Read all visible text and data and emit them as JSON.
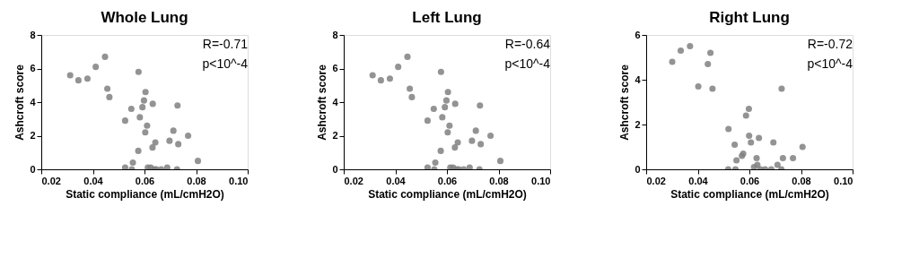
{
  "chart_data": [
    {
      "type": "scatter",
      "title": "Whole Lung",
      "xlabel": "Static compliance (mL/cmH2O)",
      "ylabel": "Ashcroft score",
      "annotations": [
        "R=-0.71",
        "p<10^-4"
      ],
      "marker": "circle",
      "grid": false,
      "xlim": [
        0.02,
        0.1
      ],
      "xticks": [
        {
          "value": 0.02,
          "label": "0.02"
        },
        {
          "value": 0.04,
          "label": "0.04"
        },
        {
          "value": 0.06,
          "label": "0.06"
        },
        {
          "value": 0.08,
          "label": "0.08"
        },
        {
          "value": 0.1,
          "label": "0.10"
        }
      ],
      "ylim": [
        0,
        8
      ],
      "yticks": [
        0,
        2,
        4,
        6,
        8
      ],
      "series": [
        {
          "color": "#808080",
          "x": [
            0.0312,
            0.0344,
            0.0379,
            0.0411,
            0.0447,
            0.0456,
            0.0464,
            0.0577,
            0.0525,
            0.0549,
            0.0582,
            0.0592,
            0.0598,
            0.0604,
            0.0603,
            0.061,
            0.0632,
            0.0631,
            0.0642,
            0.0576,
            0.0555,
            0.0525,
            0.0551,
            0.0613,
            0.0624,
            0.0638,
            0.0646,
            0.0665,
            0.0688,
            0.0697,
            0.0712,
            0.0728,
            0.0726,
            0.0731,
            0.0769,
            0.0807
          ],
          "values": [
            5.6,
            5.3,
            5.4,
            6.1,
            6.7,
            4.8,
            4.3,
            5.8,
            2.9,
            3.6,
            3.1,
            3.7,
            4.1,
            4.6,
            2.2,
            2.6,
            3.9,
            1.3,
            1.6,
            1.1,
            0.4,
            0.1,
            0,
            0.1,
            0.1,
            0,
            0,
            0,
            0.1,
            1.7,
            2.3,
            3.8,
            0,
            1.5,
            2.0,
            0.5
          ]
        }
      ]
    },
    {
      "type": "scatter",
      "title": "Left Lung",
      "xlabel": "Static compliance (mL/cmH2O)",
      "ylabel": "Ashcroft score",
      "annotations": [
        "R=-0.64",
        "p<10^-4"
      ],
      "marker": "circle",
      "grid": false,
      "xlim": [
        0.02,
        0.1
      ],
      "xticks": [
        {
          "value": 0.02,
          "label": "0.02"
        },
        {
          "value": 0.04,
          "label": "0.04"
        },
        {
          "value": 0.06,
          "label": "0.06"
        },
        {
          "value": 0.08,
          "label": "0.08"
        },
        {
          "value": 0.1,
          "label": "0.10"
        }
      ],
      "ylim": [
        0,
        8
      ],
      "yticks": [
        0,
        2,
        4,
        6,
        8
      ],
      "series": [
        {
          "color": "#808080",
          "x": [
            0.0312,
            0.0344,
            0.0379,
            0.0411,
            0.0447,
            0.0456,
            0.0464,
            0.0577,
            0.0525,
            0.0549,
            0.0582,
            0.0592,
            0.0598,
            0.0604,
            0.0603,
            0.061,
            0.0632,
            0.0631,
            0.0642,
            0.0576,
            0.0555,
            0.0525,
            0.0551,
            0.0613,
            0.0624,
            0.0638,
            0.0646,
            0.0665,
            0.0688,
            0.0697,
            0.0712,
            0.0728,
            0.0726,
            0.0731,
            0.0769,
            0.0807
          ],
          "values": [
            5.6,
            5.3,
            5.4,
            6.1,
            6.7,
            4.8,
            4.3,
            5.8,
            2.9,
            3.6,
            3.1,
            3.7,
            4.1,
            4.6,
            2.2,
            2.6,
            3.9,
            1.3,
            1.6,
            1.1,
            0.4,
            0.1,
            0,
            0.1,
            0.1,
            0,
            0,
            0,
            0.1,
            1.7,
            2.3,
            3.8,
            0,
            1.5,
            2.0,
            0.5
          ]
        }
      ]
    },
    {
      "type": "scatter",
      "title": "Right Lung",
      "xlabel": "Static compliance (mL/cmH2O)",
      "ylabel": "Ashcroft score",
      "annotations": [
        "R=-0.72",
        "p<10^-4"
      ],
      "marker": "circle",
      "grid": false,
      "xlim": [
        0.02,
        0.1
      ],
      "xticks": [
        {
          "value": 0.02,
          "label": "0.02"
        },
        {
          "value": 0.04,
          "label": "0.04"
        },
        {
          "value": 0.06,
          "label": "0.06"
        },
        {
          "value": 0.08,
          "label": "0.08"
        },
        {
          "value": 0.1,
          "label": "0.10"
        }
      ],
      "ylim": [
        0,
        6
      ],
      "yticks": [
        0,
        2,
        4,
        6
      ],
      "series": [
        {
          "color": "#808080",
          "x": [
            0.0301,
            0.0334,
            0.037,
            0.0402,
            0.0439,
            0.0449,
            0.0457,
            0.0519,
            0.0543,
            0.055,
            0.0518,
            0.0546,
            0.0571,
            0.0576,
            0.0587,
            0.0598,
            0.0599,
            0.0606,
            0.0628,
            0.0631,
            0.0637,
            0.0618,
            0.0643,
            0.0661,
            0.0685,
            0.0693,
            0.0709,
            0.0725,
            0.0724,
            0.073,
            0.0769,
            0.0806
          ],
          "values": [
            4.8,
            5.3,
            5.5,
            3.7,
            4.7,
            5.2,
            3.6,
            1.8,
            1.1,
            0.4,
            0,
            0,
            0.6,
            0.7,
            2.4,
            2.7,
            1.5,
            1.2,
            0.5,
            0.2,
            1.4,
            0.1,
            0,
            0,
            0,
            1.2,
            0.2,
            3.6,
            0,
            0.5,
            0.5,
            1.0
          ]
        }
      ]
    }
  ]
}
